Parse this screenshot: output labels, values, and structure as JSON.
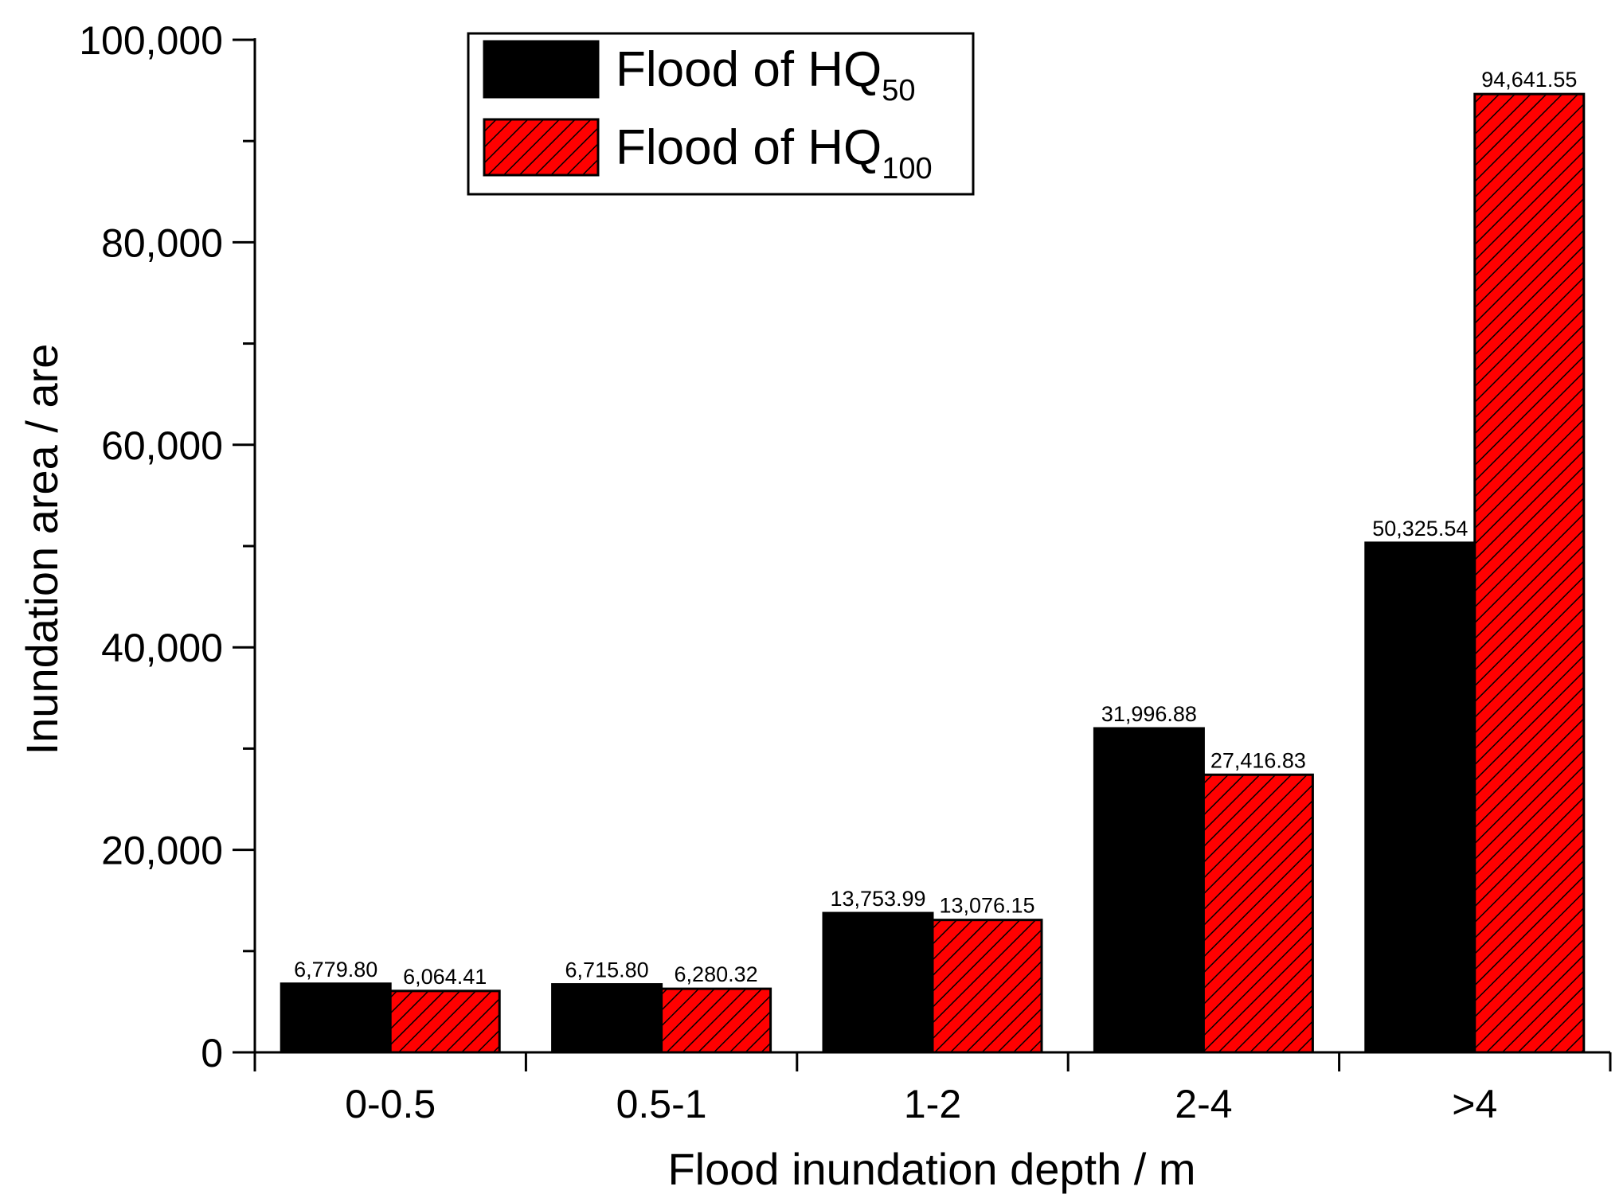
{
  "chart_data": {
    "type": "bar",
    "xlabel": "Flood inundation depth / m",
    "ylabel": "Inundation area / are",
    "categories": [
      "0-0.5",
      "0.5-1",
      "1-2",
      "2-4",
      ">4"
    ],
    "ylim": [
      0,
      100000
    ],
    "yticks": [
      0,
      20000,
      40000,
      60000,
      80000,
      100000
    ],
    "ytick_labels": [
      "0",
      "20,000",
      "40,000",
      "60,000",
      "80,000",
      "100,000"
    ],
    "grid": false,
    "legend_position": "top-left",
    "series": [
      {
        "name": "Flood of HQ50",
        "legend_main": "Flood of HQ",
        "legend_sub": "50",
        "color": "#000000",
        "pattern": "solid",
        "values": [
          6779.8,
          6715.8,
          13753.99,
          31996.88,
          50325.54
        ],
        "labels": [
          "6,779.80",
          "6,715.80",
          "13,753.99",
          "31,996.88",
          "50,325.54"
        ]
      },
      {
        "name": "Flood of HQ100",
        "legend_main": "Flood of HQ",
        "legend_sub": "100",
        "color": "#ff0000",
        "pattern": "hatched",
        "values": [
          6064.41,
          6280.32,
          13076.15,
          27416.83,
          94641.55
        ],
        "labels": [
          "6,064.41",
          "6,280.32",
          "13,076.15",
          "27,416.83",
          "94,641.55"
        ]
      }
    ]
  }
}
